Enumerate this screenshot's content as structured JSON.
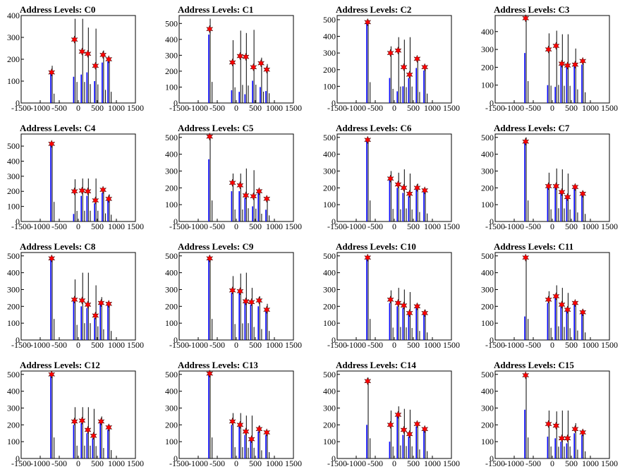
{
  "colors": {
    "black_hist": "#000000",
    "blue_hist": "#0000ff",
    "marker": "#ff0000",
    "marker_edge": "#000000"
  },
  "chart_data": [
    {
      "type": "bar",
      "title": "Address Levels: C0",
      "xlim": [
        -1500,
        1500
      ],
      "ylim": [
        0,
        400
      ],
      "xticks": [
        -1500,
        -1000,
        -500,
        0,
        500,
        1000,
        1500
      ],
      "yticks": [
        0,
        100,
        200,
        300,
        400
      ],
      "grid": false,
      "peaks": [
        -700,
        -100,
        100,
        250,
        450,
        650,
        800
      ],
      "black": [
        170,
        385,
        385,
        345,
        340,
        240,
        205
      ],
      "blue": [
        140,
        120,
        130,
        140,
        100,
        185,
        190
      ],
      "markers": [
        140,
        290,
        235,
        225,
        170,
        220,
        200
      ]
    },
    {
      "type": "bar",
      "title": "Address Levels: C1",
      "xlim": [
        -1500,
        1500
      ],
      "ylim": [
        0,
        550
      ],
      "xticks": [
        -1500,
        -1000,
        -500,
        0,
        500,
        1000,
        1500
      ],
      "yticks": [
        0,
        100,
        200,
        300,
        400,
        500
      ],
      "grid": false,
      "peaks": [
        -700,
        -100,
        100,
        250,
        450,
        650,
        800
      ],
      "black": [
        530,
        395,
        455,
        440,
        460,
        285,
        245
      ],
      "blue": [
        430,
        80,
        70,
        55,
        140,
        100,
        75
      ],
      "markers": [
        465,
        255,
        295,
        290,
        225,
        250,
        210
      ]
    },
    {
      "type": "bar",
      "title": "Address Levels: C2",
      "xlim": [
        -1500,
        1500
      ],
      "ylim": [
        0,
        525
      ],
      "xticks": [
        -1500,
        -1000,
        -500,
        0,
        500,
        1000,
        1500
      ],
      "yticks": [
        0,
        100,
        200,
        300,
        400,
        500
      ],
      "grid": false,
      "peaks": [
        -700,
        -100,
        100,
        250,
        400,
        600,
        800
      ],
      "black": [
        500,
        340,
        395,
        380,
        395,
        265,
        225
      ],
      "blue": [
        490,
        150,
        70,
        100,
        150,
        210,
        195
      ],
      "markers": [
        485,
        300,
        315,
        215,
        170,
        265,
        215
      ]
    },
    {
      "type": "bar",
      "title": "Address Levels: C3",
      "xlim": [
        -1500,
        1500
      ],
      "ylim": [
        0,
        490
      ],
      "xticks": [
        -1500,
        -1000,
        -500,
        0,
        500,
        1000,
        1500
      ],
      "yticks": [
        0,
        100,
        200,
        300,
        400
      ],
      "grid": false,
      "peaks": [
        -700,
        -100,
        100,
        250,
        400,
        600,
        800
      ],
      "black": [
        490,
        390,
        405,
        385,
        385,
        305,
        240
      ],
      "blue": [
        280,
        100,
        90,
        210,
        200,
        205,
        215
      ],
      "markers": [
        475,
        300,
        320,
        220,
        210,
        215,
        235
      ]
    },
    {
      "type": "bar",
      "title": "Address Levels: C4",
      "xlim": [
        -1500,
        1500
      ],
      "ylim": [
        0,
        580
      ],
      "xticks": [
        -1500,
        -1000,
        -500,
        0,
        500,
        1000,
        1500
      ],
      "yticks": [
        0,
        100,
        200,
        300,
        400,
        500
      ],
      "grid": false,
      "peaks": [
        -700,
        -100,
        100,
        250,
        450,
        650,
        800
      ],
      "black": [
        520,
        280,
        285,
        285,
        285,
        215,
        180
      ],
      "blue": [
        510,
        50,
        170,
        170,
        120,
        190,
        140
      ],
      "markers": [
        515,
        200,
        205,
        200,
        140,
        210,
        150
      ]
    },
    {
      "type": "bar",
      "title": "Address Levels: C5",
      "xlim": [
        -1500,
        1500
      ],
      "ylim": [
        0,
        520
      ],
      "xticks": [
        -1500,
        -1000,
        -500,
        0,
        500,
        1000,
        1500
      ],
      "yticks": [
        0,
        100,
        200,
        300,
        400,
        500
      ],
      "grid": false,
      "peaks": [
        -700,
        -100,
        100,
        250,
        450,
        600,
        800
      ],
      "black": [
        500,
        285,
        285,
        315,
        305,
        185,
        145
      ],
      "blue": [
        370,
        180,
        180,
        140,
        90,
        170,
        70
      ],
      "markers": [
        505,
        230,
        215,
        155,
        150,
        180,
        135
      ]
    },
    {
      "type": "bar",
      "title": "Address Levels: C6",
      "xlim": [
        -1500,
        1500
      ],
      "ylim": [
        0,
        520
      ],
      "xticks": [
        -1500,
        -1000,
        -500,
        0,
        500,
        1000,
        1500
      ],
      "yticks": [
        0,
        100,
        200,
        300,
        400,
        500
      ],
      "grid": false,
      "peaks": [
        -700,
        -100,
        100,
        250,
        400,
        600,
        800
      ],
      "black": [
        500,
        300,
        290,
        310,
        285,
        225,
        190
      ],
      "blue": [
        490,
        250,
        200,
        170,
        150,
        190,
        175
      ],
      "markers": [
        485,
        255,
        220,
        200,
        165,
        200,
        185
      ]
    },
    {
      "type": "bar",
      "title": "Address Levels: C7",
      "xlim": [
        -1500,
        1500
      ],
      "ylim": [
        0,
        520
      ],
      "xticks": [
        -1500,
        -1000,
        -500,
        0,
        500,
        1000,
        1500
      ],
      "yticks": [
        0,
        100,
        200,
        300,
        400,
        500
      ],
      "grid": false,
      "peaks": [
        -700,
        -100,
        100,
        250,
        400,
        600,
        800
      ],
      "black": [
        500,
        290,
        315,
        310,
        285,
        215,
        180
      ],
      "blue": [
        480,
        200,
        200,
        180,
        140,
        200,
        160
      ],
      "markers": [
        475,
        210,
        210,
        175,
        145,
        205,
        165
      ]
    },
    {
      "type": "bar",
      "title": "Address Levels: C8",
      "xlim": [
        -1500,
        1500
      ],
      "ylim": [
        0,
        520
      ],
      "xticks": [
        -1500,
        -1000,
        -500,
        0,
        500,
        1000,
        1500
      ],
      "yticks": [
        0,
        100,
        200,
        300,
        400,
        500
      ],
      "grid": false,
      "peaks": [
        -700,
        -100,
        100,
        250,
        450,
        600,
        800
      ],
      "black": [
        500,
        360,
        400,
        400,
        325,
        255,
        215
      ],
      "blue": [
        480,
        230,
        200,
        190,
        130,
        210,
        215
      ],
      "markers": [
        485,
        240,
        235,
        210,
        145,
        220,
        215
      ]
    },
    {
      "type": "bar",
      "title": "Address Levels: C9",
      "xlim": [
        -1500,
        1500
      ],
      "ylim": [
        0,
        520
      ],
      "xticks": [
        -1500,
        -1000,
        -500,
        0,
        500,
        1000,
        1500
      ],
      "yticks": [
        0,
        100,
        200,
        300,
        400,
        500
      ],
      "grid": false,
      "peaks": [
        -700,
        -100,
        100,
        250,
        400,
        600,
        800
      ],
      "black": [
        500,
        380,
        395,
        400,
        310,
        260,
        215
      ],
      "blue": [
        480,
        280,
        280,
        220,
        210,
        200,
        175
      ],
      "markers": [
        485,
        295,
        290,
        230,
        225,
        235,
        180
      ]
    },
    {
      "type": "bar",
      "title": "Address Levels: C10",
      "xlim": [
        -1500,
        1500
      ],
      "ylim": [
        0,
        520
      ],
      "xticks": [
        -1500,
        -1000,
        -500,
        0,
        500,
        1000,
        1500
      ],
      "yticks": [
        0,
        100,
        200,
        300,
        400,
        500
      ],
      "grid": false,
      "peaks": [
        -700,
        -100,
        100,
        250,
        400,
        600,
        800
      ],
      "black": [
        500,
        295,
        310,
        300,
        285,
        215,
        180
      ],
      "blue": [
        480,
        220,
        200,
        190,
        150,
        190,
        160
      ],
      "markers": [
        490,
        240,
        220,
        205,
        160,
        200,
        160
      ]
    },
    {
      "type": "bar",
      "title": "Address Levels: C11",
      "xlim": [
        -1500,
        1500
      ],
      "ylim": [
        0,
        520
      ],
      "xticks": [
        -1500,
        -1000,
        -500,
        0,
        500,
        1000,
        1500
      ],
      "yticks": [
        0,
        100,
        200,
        300,
        400,
        500
      ],
      "grid": false,
      "peaks": [
        -700,
        -100,
        100,
        250,
        400,
        600,
        800
      ],
      "black": [
        500,
        290,
        325,
        310,
        280,
        225,
        180
      ],
      "blue": [
        140,
        220,
        250,
        200,
        170,
        210,
        160
      ],
      "markers": [
        490,
        240,
        260,
        210,
        180,
        220,
        165
      ]
    },
    {
      "type": "bar",
      "title": "Address Levels: C12",
      "xlim": [
        -1500,
        1500
      ],
      "ylim": [
        0,
        520
      ],
      "xticks": [
        -1500,
        -1000,
        -500,
        0,
        500,
        1000,
        1500
      ],
      "yticks": [
        0,
        100,
        200,
        300,
        400,
        500
      ],
      "grid": false,
      "peaks": [
        -700,
        -100,
        100,
        250,
        400,
        600,
        800
      ],
      "black": [
        500,
        305,
        305,
        305,
        295,
        250,
        200
      ],
      "blue": [
        490,
        200,
        210,
        150,
        120,
        210,
        170
      ],
      "markers": [
        500,
        220,
        225,
        170,
        135,
        220,
        185
      ]
    },
    {
      "type": "bar",
      "title": "Address Levels: C13",
      "xlim": [
        -1500,
        1500
      ],
      "ylim": [
        0,
        520
      ],
      "xticks": [
        -1500,
        -1000,
        -500,
        0,
        500,
        1000,
        1500
      ],
      "yticks": [
        0,
        100,
        200,
        300,
        400,
        500
      ],
      "grid": false,
      "peaks": [
        -700,
        -100,
        100,
        250,
        400,
        600,
        800
      ],
      "black": [
        500,
        270,
        270,
        255,
        255,
        195,
        150
      ],
      "blue": [
        500,
        200,
        190,
        140,
        110,
        160,
        140
      ],
      "markers": [
        505,
        220,
        200,
        160,
        115,
        175,
        155
      ]
    },
    {
      "type": "bar",
      "title": "Address Levels: C14",
      "xlim": [
        -1500,
        1500
      ],
      "ylim": [
        0,
        520
      ],
      "xticks": [
        -1500,
        -1000,
        -500,
        0,
        500,
        1000,
        1500
      ],
      "yticks": [
        0,
        100,
        200,
        300,
        400,
        500
      ],
      "grid": false,
      "peaks": [
        -700,
        -100,
        100,
        250,
        400,
        600,
        800
      ],
      "black": [
        480,
        285,
        310,
        295,
        290,
        215,
        175
      ],
      "blue": [
        200,
        100,
        250,
        140,
        130,
        190,
        170
      ],
      "markers": [
        460,
        200,
        260,
        170,
        145,
        205,
        175
      ]
    },
    {
      "type": "bar",
      "title": "Address Levels: C15",
      "xlim": [
        -1500,
        1500
      ],
      "ylim": [
        0,
        520
      ],
      "xticks": [
        -1500,
        -1000,
        -500,
        0,
        500,
        1000,
        1500
      ],
      "yticks": [
        0,
        100,
        200,
        300,
        400,
        500
      ],
      "grid": false,
      "peaks": [
        -700,
        -100,
        100,
        250,
        400,
        600,
        800
      ],
      "black": [
        500,
        285,
        280,
        285,
        285,
        210,
        170
      ],
      "blue": [
        290,
        130,
        120,
        100,
        90,
        150,
        140
      ],
      "markers": [
        495,
        205,
        195,
        120,
        120,
        175,
        155
      ]
    }
  ]
}
